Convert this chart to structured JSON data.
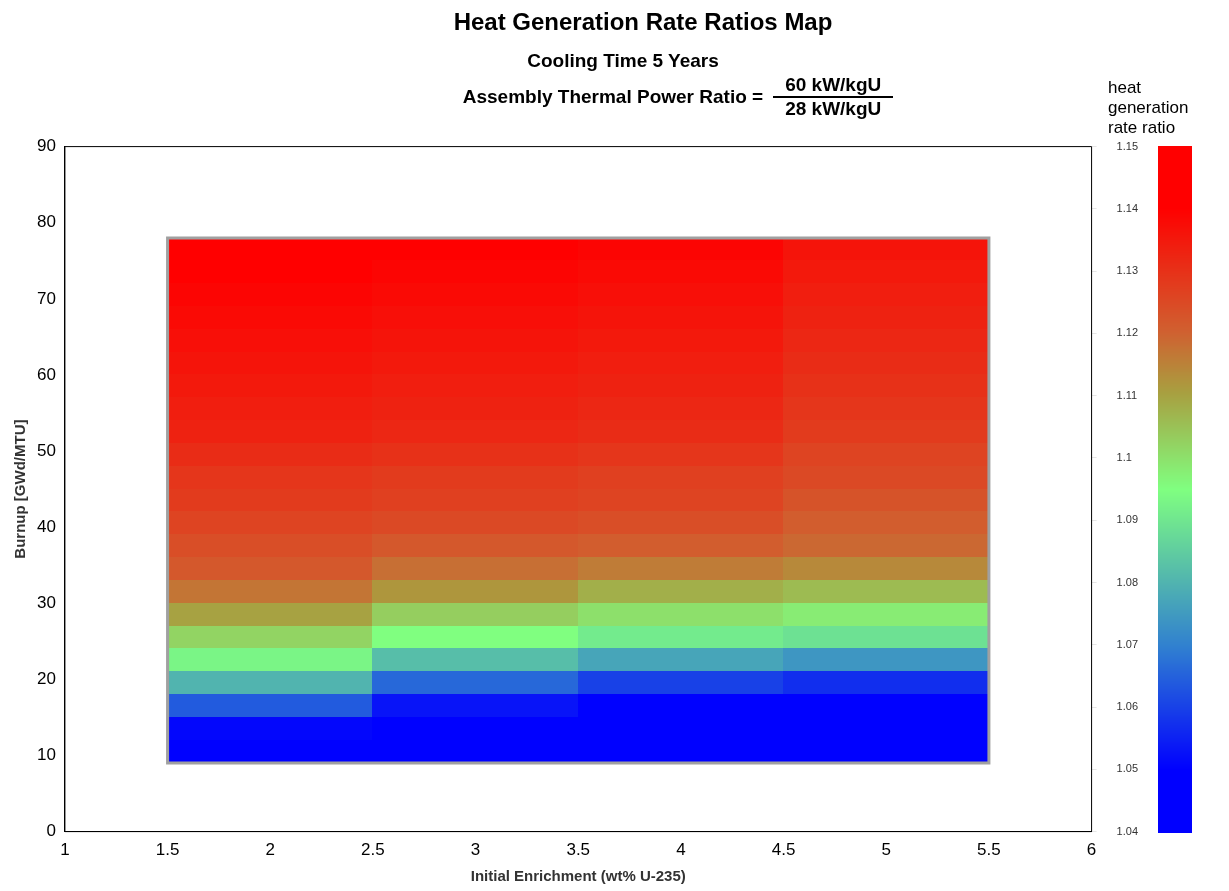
{
  "chart_data": {
    "type": "heatmap",
    "title": "Heat Generation Rate Ratios Map",
    "subtitle": "Cooling Time 5 Years",
    "annotations": [
      "Assembly Thermal Power Ratio =",
      "60 kW/kgU",
      "28 kW/kgU"
    ],
    "xlabel": "Initial Enrichment (wt% U-235)",
    "ylabel": "Burnup [GWd/MTU]",
    "clabel": "heat generation rate ratio",
    "xlim": [
      1,
      6
    ],
    "xticks": [
      1,
      1.5,
      2,
      2.5,
      3,
      3.5,
      4,
      4.5,
      5,
      5.5,
      6
    ],
    "ylim": [
      0,
      90
    ],
    "yticks": [
      0,
      10,
      20,
      30,
      40,
      50,
      60,
      70,
      80,
      90
    ],
    "clim": [
      1.04,
      1.15
    ],
    "cticks": [
      1.04,
      1.05,
      1.06,
      1.07,
      1.08,
      1.09,
      1.1,
      1.11,
      1.12,
      1.13,
      1.14,
      1.15
    ],
    "x": [
      2,
      3,
      4,
      5
    ],
    "y": [
      76.5,
      73.5,
      70.5,
      67.5,
      64.5,
      61.5,
      58.5,
      55.5,
      52.5,
      49.5,
      46.5,
      43.5,
      40.5,
      37.5,
      34.5,
      31.5,
      28.5,
      25.5,
      22.5,
      19.5,
      16.5,
      13.5,
      10.5
    ],
    "cells": [
      [
        1.14,
        1.14,
        1.139,
        1.136
      ],
      [
        1.14,
        1.139,
        1.138,
        1.135
      ],
      [
        1.139,
        1.138,
        1.137,
        1.134
      ],
      [
        1.138,
        1.137,
        1.136,
        1.133
      ],
      [
        1.137,
        1.136,
        1.135,
        1.132
      ],
      [
        1.136,
        1.135,
        1.134,
        1.131
      ],
      [
        1.135,
        1.134,
        1.133,
        1.13
      ],
      [
        1.134,
        1.133,
        1.132,
        1.129
      ],
      [
        1.133,
        1.132,
        1.131,
        1.128
      ],
      [
        1.131,
        1.13,
        1.129,
        1.126
      ],
      [
        1.129,
        1.128,
        1.127,
        1.125
      ],
      [
        1.128,
        1.127,
        1.126,
        1.123
      ],
      [
        1.126,
        1.125,
        1.124,
        1.121
      ],
      [
        1.124,
        1.122,
        1.121,
        1.119
      ],
      [
        1.122,
        1.118,
        1.116,
        1.114
      ],
      [
        1.117,
        1.112,
        1.108,
        1.106
      ],
      [
        1.11,
        1.103,
        1.1,
        1.098
      ],
      [
        1.102,
        1.095,
        1.091,
        1.089
      ],
      [
        1.093,
        1.082,
        1.077,
        1.074
      ],
      [
        1.08,
        1.066,
        1.06,
        1.057
      ],
      [
        1.064,
        1.053,
        1.05,
        1.05
      ],
      [
        1.051,
        1.05,
        1.05,
        1.05
      ],
      [
        1.05,
        1.05,
        1.05,
        1.05
      ]
    ],
    "grid": false
  }
}
